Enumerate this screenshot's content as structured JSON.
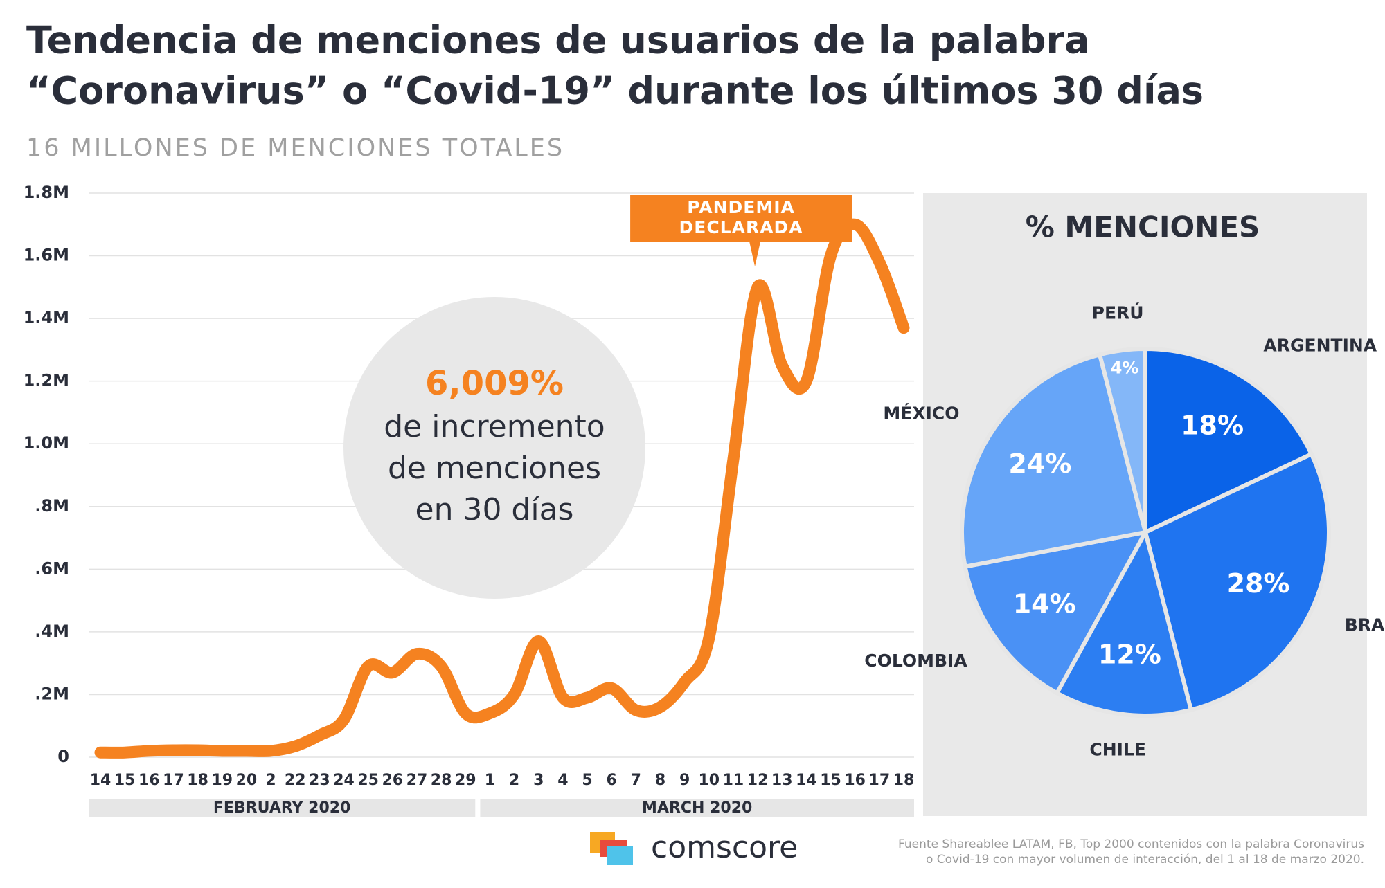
{
  "chart_data": [
    {
      "type": "line",
      "title": "Tendencia de menciones de usuarios de la palabra “Coronavirus” o “Covid-19” durante los últimos 30 días",
      "subtitle": "16 MILLONES DE MENCIONES TOTALES",
      "categories": [
        "14",
        "15",
        "16",
        "17",
        "18",
        "19",
        "20",
        "2",
        "22",
        "23",
        "24",
        "25",
        "26",
        "27",
        "28",
        "29",
        "1",
        "2",
        "3",
        "4",
        "5",
        "6",
        "7",
        "8",
        "9",
        "10",
        "11",
        "12",
        "13",
        "14",
        "15",
        "16",
        "17",
        "18"
      ],
      "groups": [
        {
          "label": "FEBRUARY 2020",
          "count": 16
        },
        {
          "label": "MARCH 2020",
          "count": 18
        }
      ],
      "series": [
        {
          "name": "Menciones",
          "color": "#f58220",
          "values": [
            15000,
            15000,
            20000,
            22000,
            22000,
            20000,
            20000,
            20000,
            35000,
            70000,
            120000,
            290000,
            270000,
            330000,
            290000,
            140000,
            140000,
            200000,
            370000,
            190000,
            190000,
            220000,
            150000,
            160000,
            240000,
            380000,
            950000,
            1500000,
            1250000,
            1200000,
            1600000,
            1700000,
            1580000,
            1370000
          ]
        }
      ],
      "ylim": [
        0,
        1800000
      ],
      "yticks": [
        0,
        {
          "value": 200000,
          "label": ".2M"
        },
        {
          "value": 400000,
          "label": ".4M"
        },
        {
          "value": 600000,
          "label": ".6M"
        },
        {
          "value": 800000,
          "label": ".8M"
        },
        {
          "value": 1000000,
          "label": "1.0M"
        },
        {
          "value": 1200000,
          "label": "1.2M"
        },
        {
          "value": 1400000,
          "label": "1.4M"
        },
        {
          "value": 1600000,
          "label": "1.6M"
        },
        {
          "value": 1800000,
          "label": "1.8M"
        }
      ],
      "grid": true,
      "annotations": [
        {
          "text": [
            "PANDEMIA",
            "DECLARADA"
          ],
          "index": 27
        }
      ],
      "callout": {
        "highlight": "6,009%",
        "lines": [
          "de incremento",
          "de menciones",
          "en 30 días"
        ]
      }
    },
    {
      "type": "pie",
      "title": "% MENCIONES",
      "categories": [
        "ARGENTINA",
        "BRASIL",
        "CHILE",
        "COLOMBIA",
        "MÉXICO",
        "PERÚ"
      ],
      "values": [
        18,
        28,
        12,
        14,
        24,
        4
      ],
      "value_labels": [
        "18%",
        "28%",
        "12%",
        "14%",
        "24%",
        "4%"
      ],
      "colors": [
        "#0a63e8",
        "#1f74f0",
        "#2c7ef2",
        "#4a91f5",
        "#66a5f8",
        "#84b7f8"
      ]
    }
  ],
  "footer": {
    "brand": "comscore",
    "source": [
      "Fuente Shareablee LATAM, FB, Top 2000 contenidos con la palabra Coronavirus",
      "o Covid-19 con mayor volumen de interacción, del 1 al 18 de marzo 2020."
    ]
  }
}
